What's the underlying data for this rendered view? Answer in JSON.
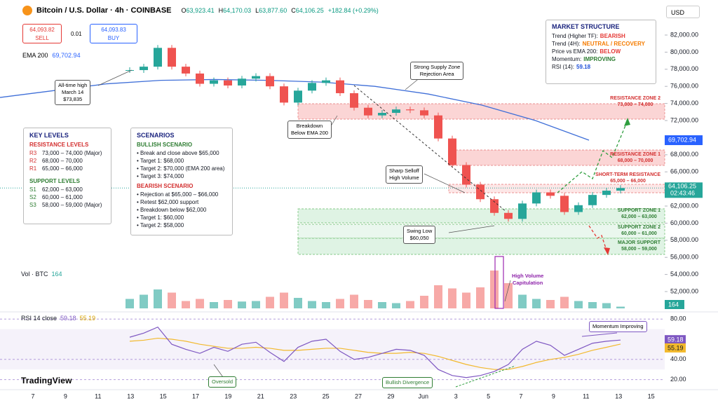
{
  "header": {
    "symbol": "Bitcoin / U.S. Dollar · 4h · COINBASE",
    "ohlc": [
      {
        "key": "O",
        "value": "63,923.41"
      },
      {
        "key": "H",
        "value": "64,170.03"
      },
      {
        "key": "L",
        "value": "63,877.60"
      },
      {
        "key": "C",
        "value": "64,106.25"
      }
    ],
    "change": "+182.84 (+0.29%)",
    "currency": "USD"
  },
  "order": {
    "sell_price": "64,093.82",
    "sell": "SELL",
    "spread": "0.01",
    "buy_price": "64,093.83",
    "buy": "BUY"
  },
  "ema": {
    "label": "EMA 200",
    "value": "69,702.94",
    "values": [
      74700,
      75500,
      76300,
      76700,
      76800,
      76700,
      76500,
      76000,
      75100,
      73800,
      72000,
      69702.94
    ]
  },
  "price": {
    "ylim": [
      52000,
      82000
    ],
    "yticks": [
      {
        "value": 82000,
        "label": "82,000.00"
      },
      {
        "value": 80000,
        "label": "80,000.00"
      },
      {
        "value": 78000,
        "label": "78,000.00"
      },
      {
        "value": 76000,
        "label": "76,000.00"
      },
      {
        "value": 74000,
        "label": "74,000.00"
      },
      {
        "value": 72000,
        "label": "72,000.00"
      },
      {
        "value": 68000,
        "label": "68,000.00"
      },
      {
        "value": 66000,
        "label": "66,000.00"
      },
      {
        "value": 62000,
        "label": "62,000.00"
      },
      {
        "value": 60000,
        "label": "60,000.00"
      },
      {
        "value": 58000,
        "label": "58,000.00"
      },
      {
        "value": 56000,
        "label": "56,000.00"
      },
      {
        "value": 54000,
        "label": "54,000.00"
      },
      {
        "value": 52000,
        "label": "52,000.00"
      }
    ],
    "closes": [
      77900,
      78300,
      80500,
      78300,
      77500,
      76300,
      76700,
      76100,
      76900,
      77200,
      76000,
      74100,
      75500,
      76400,
      76700,
      75200,
      73500,
      72600,
      72900,
      73300,
      73200,
      72600,
      69900,
      66800,
      64500,
      62800,
      61200,
      60500,
      62300,
      63600,
      63200,
      61300,
      62100,
      63300,
      63800,
      64106.25
    ],
    "current": {
      "value": 64106.25,
      "label": "64,106.25",
      "timer": "02:43:46"
    },
    "up_color": "#26a69a",
    "down_color": "#ef5350"
  },
  "volume": {
    "label": "Vol · BTC",
    "value": "164",
    "values": [
      900,
      1300,
      1800,
      1500,
      700,
      900,
      600,
      800,
      650,
      700,
      1100,
      1500,
      1000,
      700,
      600,
      900,
      1300,
      800,
      600,
      500,
      700,
      1200,
      2200,
      1900,
      1500,
      2000,
      3600,
      2400,
      1300,
      900,
      800,
      1100,
      700,
      600,
      500,
      164
    ]
  },
  "rsi": {
    "label": "RSI 14 close",
    "value": "59.18",
    "ma_value": "55.19",
    "ylim": [
      10,
      85
    ],
    "yticks": [
      {
        "value": 80,
        "label": "80.00"
      },
      {
        "value": 40,
        "label": "40.00"
      },
      {
        "value": 20,
        "label": "20.00"
      }
    ],
    "values": [
      62,
      66,
      72,
      55,
      50,
      46,
      52,
      48,
      55,
      57,
      47,
      38,
      52,
      58,
      60,
      48,
      40,
      42,
      46,
      50,
      49,
      44,
      30,
      24,
      22,
      24,
      28,
      35,
      50,
      58,
      54,
      44,
      50,
      56,
      58,
      59.18
    ],
    "ma": [
      58,
      59,
      61,
      60,
      58,
      55,
      53,
      51,
      51,
      52,
      51,
      49,
      49,
      50,
      51,
      51,
      49,
      47,
      46,
      46,
      47,
      46,
      43,
      39,
      35,
      32,
      30,
      30,
      33,
      37,
      40,
      42,
      45,
      49,
      52,
      55.19
    ]
  },
  "time_labels": [
    "7",
    "9",
    "11",
    "13",
    "15",
    "17",
    "19",
    "21",
    "23",
    "25",
    "27",
    "29",
    "Jun",
    "3",
    "5",
    "7",
    "9",
    "11",
    "13",
    "15"
  ],
  "market_structure": {
    "title": "MARKET STRUCTURE",
    "items": [
      {
        "label": "Trend (Higher TF):",
        "value": "BEARISH",
        "color": "#e53935"
      },
      {
        "label": "Trend (4H):",
        "value": "NEUTRAL / RECOVERY",
        "color": "#f57c00"
      },
      {
        "label": "Price vs EMA 200:",
        "value": "BELOW",
        "color": "#e53935"
      },
      {
        "label": "Momentum:",
        "value": "IMPROVING",
        "color": "#2e7d32"
      },
      {
        "label": "RSI (14):",
        "value": "59.18",
        "color": "#1e4fd8"
      }
    ]
  },
  "key_levels": {
    "title": "KEY LEVELS",
    "resistance_title": "RESISTANCE LEVELS",
    "resistance": [
      [
        "R3",
        "73,000 – 74,000 (Major)"
      ],
      [
        "R2",
        "68,000 – 70,000"
      ],
      [
        "R1",
        "65,000 – 66,000"
      ]
    ],
    "support_title": "SUPPORT LEVELS",
    "support": [
      [
        "S1",
        "62,000 – 63,000"
      ],
      [
        "S2",
        "60,000 – 61,000"
      ],
      [
        "S3",
        "58,000 – 59,000 (Major)"
      ]
    ]
  },
  "scenarios": {
    "title": "SCENARIOS",
    "bullish_title": "BULLISH SCENARIO",
    "bullish": [
      "Break and close above $65,000",
      "Target 1: $68,000",
      "Target 2: $70,000 (EMA 200 area)",
      "Target 3: $74,000"
    ],
    "bearish_title": "BEARISH SCENARIO",
    "bearish": [
      "Rejection at $65,000 – $66,000",
      "Retest $62,000 support",
      "Breakdown below $62,000",
      "Target 1: $60,000",
      "Target 2: $58,000"
    ]
  },
  "zones": [
    {
      "name": "RESISTANCE ZONE 2",
      "range": "73,000 – 74,000"
    },
    {
      "name": "RESISTANCE ZONE 1",
      "range": "68,000 – 70,000"
    },
    {
      "name": "SHORT-TERM RESISTANCE",
      "range": "65,000 – 66,000"
    },
    {
      "name": "SUPPORT ZONE 1",
      "range": "62,000 – 63,000"
    },
    {
      "name": "SUPPORT ZONE 2",
      "range": "60,000 – 61,000"
    },
    {
      "name": "MAJOR SUPPORT",
      "range": "58,000 – 59,000"
    }
  ],
  "callouts": {
    "ath": [
      "All-time high",
      "March 14",
      "$73,835"
    ],
    "supply": [
      "Strong Supply Zone",
      "Rejection Area"
    ],
    "breakdown": [
      "Breakdown",
      "Below EMA 200"
    ],
    "selloff": [
      "Sharp Selloff",
      "High Volume"
    ],
    "swing": [
      "Swing Low",
      "$60,050"
    ],
    "capitulation": [
      "High Volume",
      "Capitulation"
    ],
    "momentum": "Momentum Improving",
    "oversold": "Oversold",
    "divergence": "Bullish Divergence"
  },
  "brand": "TradingView"
}
